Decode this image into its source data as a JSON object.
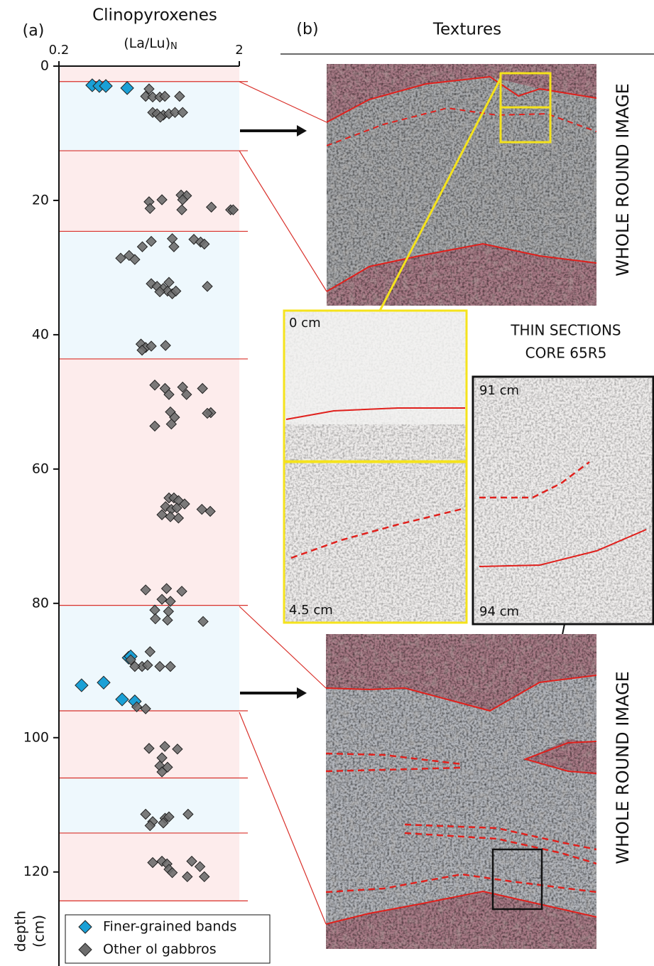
{
  "chart_data": {
    "type": "scatter",
    "panel_label": "(a)",
    "title": "Clinopyroxenes",
    "x_label": "(La/Lu)",
    "x_label_sub": "N",
    "y_label_lines": [
      "depth",
      "(cm)"
    ],
    "x_log": true,
    "xlim": [
      0.2,
      2
    ],
    "xticks": [
      0.2,
      2
    ],
    "ylim": [
      0,
      134
    ],
    "yticks": [
      0,
      20,
      40,
      60,
      80,
      100,
      120
    ],
    "y_inverted": true,
    "bands": [
      {
        "from": 0,
        "to": 2.3,
        "color": "#fdecec"
      },
      {
        "from": 2.3,
        "to": 12.6,
        "color": "#eef8fd"
      },
      {
        "from": 12.6,
        "to": 24.6,
        "color": "#fdecec"
      },
      {
        "from": 24.6,
        "to": 43.6,
        "color": "#eef8fd"
      },
      {
        "from": 43.6,
        "to": 80.3,
        "color": "#fdecec"
      },
      {
        "from": 80.3,
        "to": 96,
        "color": "#eef8fd"
      },
      {
        "from": 96,
        "to": 106,
        "color": "#fdecec"
      },
      {
        "from": 106,
        "to": 114.2,
        "color": "#eef8fd"
      },
      {
        "from": 114.2,
        "to": 124.3,
        "color": "#fdecec"
      }
    ],
    "band_line_color": "#d9302a",
    "series": [
      {
        "name": "Finer-grained bands",
        "color": "#1aa0d6",
        "marker_size": 9,
        "x": [
          0.306,
          0.335,
          0.364,
          0.478,
          0.487,
          0.5,
          0.267,
          0.354,
          0.448,
          0.527
        ],
        "y": [
          2.85,
          2.96,
          2.96,
          3.27,
          88.1,
          87.9,
          92.2,
          91.8,
          94.3,
          94.6
        ]
      },
      {
        "name": "Other ol gabbros",
        "color": "#6d6d6d",
        "marker_size": 7,
        "x": [
          0.632,
          0.605,
          0.662,
          0.725,
          0.773,
          0.933,
          0.662,
          0.7,
          0.758,
          0.815,
          0.88,
          0.97,
          0.73,
          0.951,
          1.02,
          0.97,
          0.745,
          0.632,
          0.64,
          0.96,
          1.4,
          1.79,
          1.85,
          0.85,
          1.12,
          1.22,
          1.28,
          0.65,
          0.58,
          0.868,
          0.44,
          0.527,
          0.49,
          0.65,
          0.7,
          0.758,
          0.8,
          0.85,
          0.89,
          0.725,
          1.33,
          0.815,
          0.57,
          0.605,
          0.65,
          0.78,
          0.578,
          0.68,
          0.97,
          1.25,
          0.775,
          1.02,
          0.815,
          1.39,
          0.83,
          0.875,
          0.84,
          0.68,
          1.33,
          0.815,
          0.868,
          0.92,
          0.995,
          0.78,
          0.84,
          0.9,
          1.24,
          1.38,
          0.745,
          0.83,
          0.92,
          0.605,
          0.79,
          0.96,
          0.745,
          0.83,
          0.68,
          0.81,
          0.685,
          0.8,
          1.26,
          0.64,
          0.5,
          0.578,
          0.62,
          0.725,
          0.83,
          0.527,
          0.54,
          0.605,
          0.773,
          0.632,
          0.908,
          0.745,
          0.725,
          0.8,
          0.745,
          0.605,
          0.662,
          0.775,
          0.815,
          1.04,
          0.758,
          0.64,
          0.662,
          0.745,
          0.795,
          1.09,
          1.21,
          0.815,
          0.85,
          1.03,
          1.28
        ],
        "y": [
          3.4,
          4.5,
          4.6,
          4.6,
          4.5,
          4.5,
          6.9,
          7.1,
          7.3,
          7.1,
          6.9,
          6.9,
          7.6,
          19.2,
          19.3,
          19.9,
          19.9,
          20.2,
          21.2,
          21.4,
          21.0,
          21.4,
          21.4,
          25.7,
          25.8,
          26.2,
          26.5,
          26.1,
          26.9,
          26.9,
          28.6,
          28.8,
          28.2,
          32.4,
          32.8,
          33.1,
          33.5,
          33.9,
          33.5,
          33.6,
          32.8,
          32.2,
          41.4,
          41.9,
          41.7,
          41.6,
          42.3,
          47.5,
          47.8,
          48.0,
          48.0,
          48.9,
          48.9,
          51.6,
          51.5,
          52.3,
          53.3,
          53.6,
          51.7,
          64.3,
          64.3,
          64.7,
          65.2,
          65.6,
          66.0,
          65.8,
          66.0,
          66.3,
          66.8,
          67.1,
          67.3,
          78.0,
          77.8,
          78.2,
          79.4,
          79.7,
          81.0,
          81.2,
          82.3,
          82.5,
          82.7,
          87.2,
          88.4,
          89.4,
          89.2,
          89.4,
          89.4,
          89.4,
          95.4,
          95.7,
          101.3,
          101.6,
          101.7,
          103.0,
          104.2,
          104.4,
          105.1,
          111.4,
          112.5,
          112.0,
          111.8,
          111.4,
          112.7,
          113.1,
          118.6,
          118.4,
          118.8,
          118.4,
          119.2,
          119.6,
          120.1,
          120.7,
          120.7
        ]
      }
    ]
  },
  "panel_b": {
    "label": "(b)",
    "title": "Textures",
    "whole_round": [
      "WHOLE ROUND IMAGE",
      "WHOLE ROUND IMAGE"
    ],
    "thin_sections": [
      "THIN SECTIONS",
      "CORE 65R5"
    ],
    "section_labels": [
      "0 cm",
      "4.5 cm",
      "91 cm",
      "94 cm"
    ]
  }
}
